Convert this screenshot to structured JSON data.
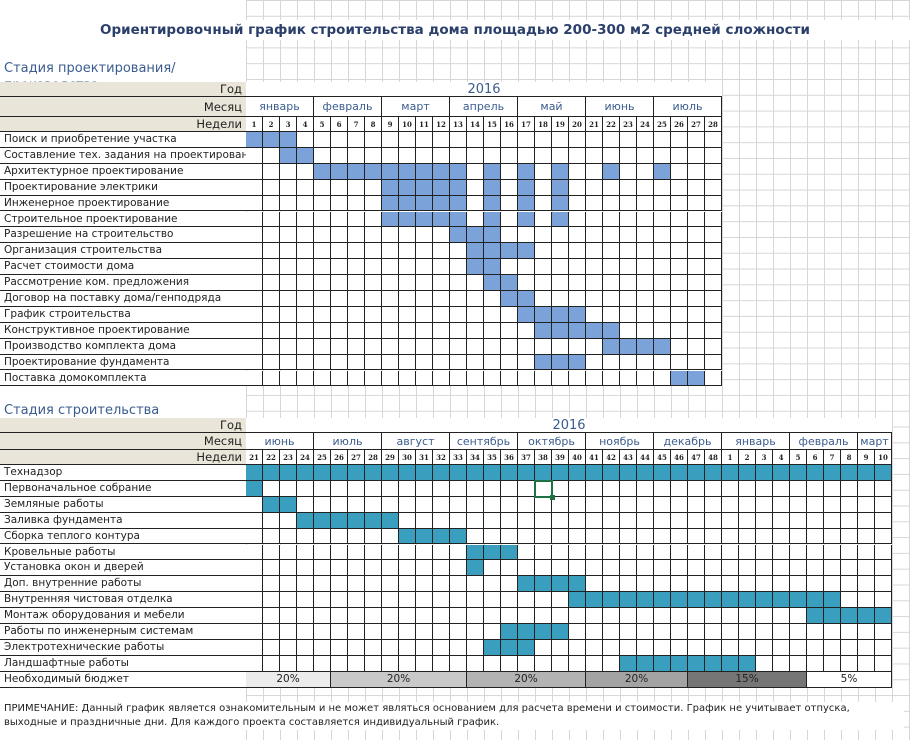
{
  "title": "Ориентировочный график строительства дома площадью 200-300 м2 средней сложности",
  "header_labels": {
    "year": "Год",
    "month": "Месяц",
    "weeks": "Недели"
  },
  "colors": {
    "design_fill": "#7ba3d9",
    "build_fill": "#3a9ebf"
  },
  "sections": [
    {
      "title": "Стадия проектирования/производства",
      "year": "2016",
      "weeks": [
        1,
        2,
        3,
        4,
        5,
        6,
        7,
        8,
        9,
        10,
        11,
        12,
        13,
        14,
        15,
        16,
        17,
        18,
        19,
        20,
        21,
        22,
        23,
        24,
        25,
        26,
        27,
        28
      ],
      "months": [
        {
          "label": "январь",
          "span": 4
        },
        {
          "label": "февраль",
          "span": 4
        },
        {
          "label": "март",
          "span": 4
        },
        {
          "label": "апрель",
          "span": 4
        },
        {
          "label": "май",
          "span": 4
        },
        {
          "label": "июнь",
          "span": 4
        },
        {
          "label": "июль",
          "span": 4
        }
      ],
      "tasks": [
        {
          "label": "Поиск и приобретение участка",
          "weeks": [
            1,
            2,
            3
          ]
        },
        {
          "label": "Составление тех. задания на проектирование",
          "weeks": [
            3,
            4
          ]
        },
        {
          "label": "Архитектурное проектирование",
          "weeks": [
            5,
            6,
            7,
            8,
            9,
            10,
            11,
            12,
            13,
            15,
            17,
            19,
            22,
            25
          ]
        },
        {
          "label": "Проектирование электрики",
          "weeks": [
            9,
            10,
            11,
            12,
            13,
            15,
            17,
            19
          ]
        },
        {
          "label": "Инженерное проектирование",
          "weeks": [
            9,
            10,
            11,
            12,
            13,
            15,
            17,
            19
          ]
        },
        {
          "label": "Строительное проектирование",
          "weeks": [
            9,
            10,
            11,
            12,
            13,
            15,
            17,
            19
          ]
        },
        {
          "label": "Разрешение на строительство",
          "weeks": [
            13,
            14,
            15
          ]
        },
        {
          "label": "Организация строительства",
          "weeks": [
            14,
            15,
            16,
            17
          ]
        },
        {
          "label": "Расчет стоимости дома",
          "weeks": [
            14,
            15
          ]
        },
        {
          "label": "Рассмотрение ком. предложения",
          "weeks": [
            15,
            16
          ]
        },
        {
          "label": "Договор на поставку дома/генподряда",
          "weeks": [
            16,
            17
          ]
        },
        {
          "label": "График строительства",
          "weeks": [
            17,
            18,
            19,
            20
          ]
        },
        {
          "label": "Конструктивное проектирование",
          "weeks": [
            18,
            19,
            20,
            21,
            22
          ]
        },
        {
          "label": "Производство комплекта дома",
          "weeks": [
            22,
            23,
            24,
            25
          ]
        },
        {
          "label": "Проектирование фундамента",
          "weeks": [
            18,
            19,
            20
          ]
        },
        {
          "label": "Поставка домокомплекта",
          "weeks": [
            26,
            27
          ]
        }
      ]
    },
    {
      "title": "Стадия строительства",
      "year": "2016",
      "weeks": [
        21,
        22,
        23,
        24,
        25,
        26,
        27,
        28,
        29,
        30,
        31,
        32,
        33,
        34,
        35,
        36,
        37,
        38,
        39,
        40,
        41,
        42,
        43,
        44,
        45,
        46,
        47,
        48,
        1,
        2,
        3,
        4,
        5,
        6,
        7,
        8,
        9,
        10
      ],
      "months": [
        {
          "label": "июнь",
          "span": 4
        },
        {
          "label": "июль",
          "span": 4
        },
        {
          "label": "август",
          "span": 4
        },
        {
          "label": "сентябрь",
          "span": 4
        },
        {
          "label": "октябрь",
          "span": 4
        },
        {
          "label": "ноябрь",
          "span": 4
        },
        {
          "label": "декабрь",
          "span": 4
        },
        {
          "label": "январь",
          "span": 4
        },
        {
          "label": "февраль",
          "span": 4
        },
        {
          "label": "март",
          "span": 2
        }
      ],
      "tasks": [
        {
          "label": "Технадзор",
          "weeks": [
            21,
            22,
            23,
            24,
            25,
            26,
            27,
            28,
            29,
            30,
            31,
            32,
            33,
            34,
            35,
            36,
            37,
            38,
            39,
            40,
            41,
            42,
            43,
            44,
            45,
            46,
            47,
            48,
            1,
            2,
            3,
            4,
            5,
            6,
            7,
            8,
            9,
            10
          ]
        },
        {
          "label": "Первоначальное собрание",
          "weeks": [
            21
          ]
        },
        {
          "label": "Земляные работы",
          "weeks": [
            22,
            23
          ]
        },
        {
          "label": "Заливка фундамента",
          "weeks": [
            24,
            25,
            26,
            27,
            28,
            29
          ]
        },
        {
          "label": "Сборка теплого контура",
          "weeks": [
            30,
            31,
            32,
            33
          ]
        },
        {
          "label": "Кровельные работы",
          "weeks": [
            34,
            35,
            36
          ]
        },
        {
          "label": "Установка окон и дверей",
          "weeks": [
            34
          ]
        },
        {
          "label": "Доп. внутренние работы",
          "weeks": [
            37,
            38,
            39,
            40
          ]
        },
        {
          "label": "Внутренняя чистовая отделка",
          "weeks": [
            40,
            41,
            42,
            43,
            44,
            45,
            46,
            47,
            48,
            1,
            2,
            3,
            4,
            5,
            6,
            7
          ]
        },
        {
          "label": "Монтаж оборудования и мебели",
          "weeks": [
            6,
            7,
            8,
            9,
            10
          ]
        },
        {
          "label": "Работы по инженерным системам",
          "weeks": [
            36,
            37,
            38,
            39
          ]
        },
        {
          "label": "Электротехнические работы",
          "weeks": [
            35,
            36,
            37
          ]
        },
        {
          "label": "Ландшафтные работы",
          "weeks": [
            43,
            44,
            45,
            46,
            47,
            48,
            1,
            2
          ]
        }
      ],
      "budget": {
        "label": "Необходимый бюджет",
        "segments": [
          {
            "label": "20%",
            "span": 5,
            "color": "#ececec"
          },
          {
            "label": "20%",
            "span": 8,
            "color": "#c9c9c9"
          },
          {
            "label": "20%",
            "span": 7,
            "color": "#b3b3b3"
          },
          {
            "label": "20%",
            "span": 6,
            "color": "#a3a3a3"
          },
          {
            "label": "15%",
            "span": 7,
            "color": "#767676"
          },
          {
            "label": "5%",
            "span": 5,
            "color": "#ffffff"
          }
        ]
      }
    }
  ],
  "note": "ПРИМЕЧАНИЕ: Данный график является ознакомительным и не может являться основанием для расчета времени и стоимости. График не учитывает отпуска, выходные и праздничные дни. Для каждого проекта составляется индивидуальный график."
}
